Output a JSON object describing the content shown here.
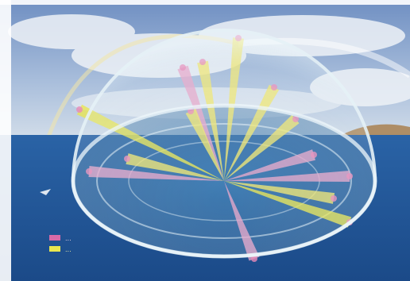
{
  "scene": {
    "subject": "hemispherical-dome-over-sea",
    "colors": {
      "sky_top": "#6f8fc2",
      "sky_bottom": "#c9d7e6",
      "cloud": "#eef2f7",
      "sea_top": "#2a63a6",
      "sea_bottom": "#1d4f8f",
      "land": "#a9804f",
      "dome_edge": "#e6f2f7",
      "beam_yellow": "#f0e56b",
      "beam_pink": "#e7a4c8",
      "legend_pink": "#d86aa8",
      "legend_yellow": "#e9e64f"
    }
  },
  "legend": {
    "rows": [
      {
        "label": "...",
        "color": "#d86aa8"
      },
      {
        "label": "...",
        "color": "#e9e64f"
      }
    ]
  }
}
